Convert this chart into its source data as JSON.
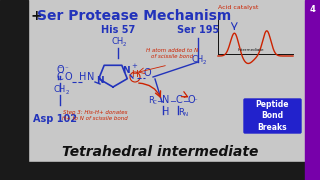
{
  "title_plus": "+",
  "title_text": "Ser Protease Mechanism",
  "subtitle": "Tetrahedral intermediate",
  "bg_color": "#c8c8c8",
  "left_black": "#1a1a1a",
  "title_color": "#2222cc",
  "subtitle_color": "#111111",
  "his57_label": "His 57",
  "ser195_label": "Ser 195",
  "asp102_label": "Asp 102",
  "acid_catalyst_label": "Acid catalyst",
  "step3_label": "Step 3: His-H+ donates\nH+ to N of scissile bond",
  "h_atom_label": "H atom added to N\nof scissile bond",
  "peptide_box_label": "Peptide\nBond\nBreaks",
  "peptide_box_bg": "#2222cc",
  "peptide_box_fg": "#ffffff",
  "blue": "#2233bb",
  "red": "#cc2200",
  "black": "#111111",
  "white": "#ffffff",
  "purple": "#7700aa",
  "slide_number": "4"
}
